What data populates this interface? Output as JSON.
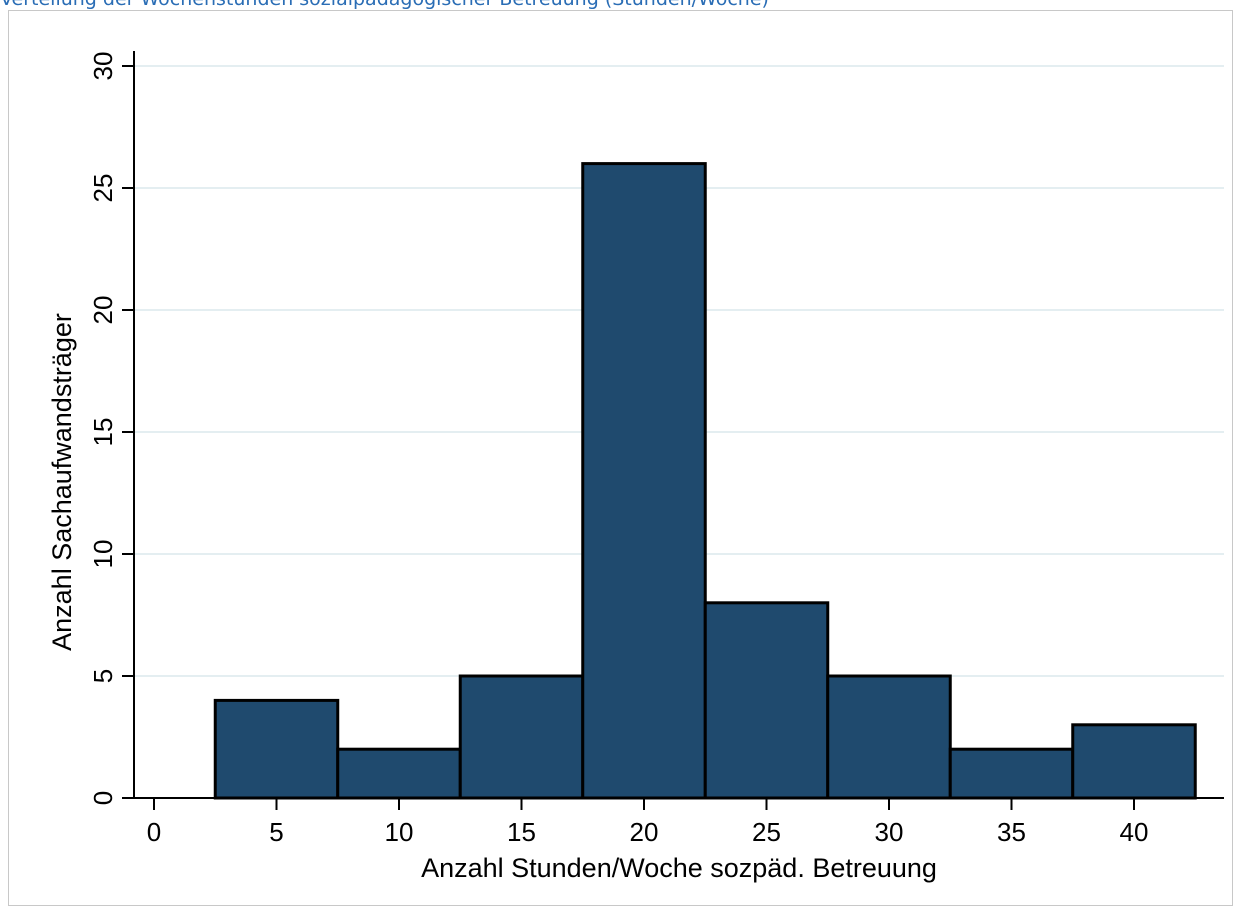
{
  "document": {
    "caption": "Verteilung der Wochenstunden sozialpädagogischer Betreuung (Stunden/Woche)"
  },
  "colors": {
    "bar_fill": "#1f4a6e",
    "bar_stroke": "#000000",
    "grid": "#e4eef1",
    "caption": "#2a6db5"
  },
  "chart_data": {
    "type": "bar",
    "subtype": "histogram",
    "title": "",
    "xlabel": "Anzahl Stunden/Woche sozpäd. Betreuung",
    "ylabel": "Anzahl Sachaufwandsträger",
    "xlim": [
      0,
      42.5
    ],
    "ylim": [
      0,
      30
    ],
    "x_ticks": [
      0,
      5,
      10,
      15,
      20,
      25,
      30,
      35,
      40
    ],
    "y_ticks": [
      0,
      5,
      10,
      15,
      20,
      25,
      30
    ],
    "bin_width": 5,
    "bins": [
      {
        "from": 2.5,
        "to": 7.5,
        "value": 4
      },
      {
        "from": 7.5,
        "to": 12.5,
        "value": 2
      },
      {
        "from": 12.5,
        "to": 17.5,
        "value": 5
      },
      {
        "from": 17.5,
        "to": 22.5,
        "value": 26
      },
      {
        "from": 22.5,
        "to": 27.5,
        "value": 8
      },
      {
        "from": 27.5,
        "to": 32.5,
        "value": 5
      },
      {
        "from": 32.5,
        "to": 37.5,
        "value": 2
      },
      {
        "from": 37.5,
        "to": 42.5,
        "value": 3
      }
    ],
    "grid": "horizontal",
    "legend": "none"
  }
}
